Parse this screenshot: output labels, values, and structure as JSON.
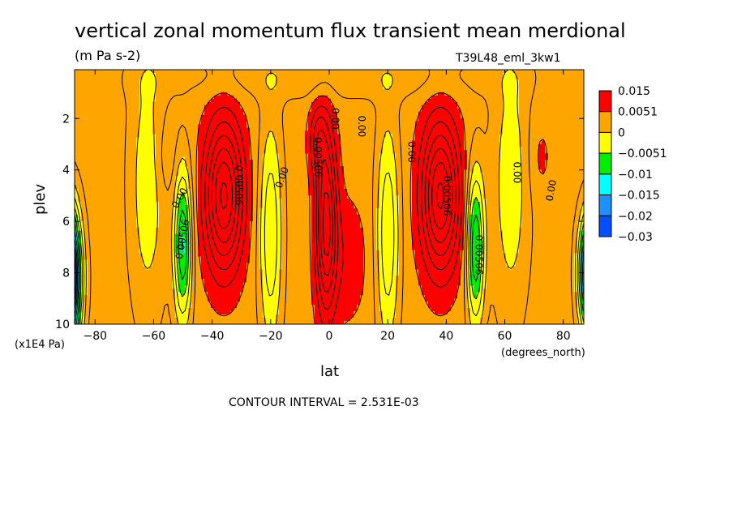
{
  "chart_data": {
    "type": "heatmap",
    "title": "vertical zonal momentum flux transient mean merdional",
    "units": "(m Pa s-2)",
    "run_label": "T39L48_eml_3kw1",
    "xlabel": "lat",
    "x_units": "(degrees_north)",
    "ylabel": "plev",
    "y_units": "(x1E4 Pa)",
    "x_range": [
      -87,
      87
    ],
    "y_range": [
      0.1,
      10
    ],
    "y_inverted": true,
    "x_ticks": [
      -80,
      -60,
      -40,
      -20,
      0,
      20,
      40,
      60,
      80
    ],
    "y_ticks": [
      2,
      4,
      6,
      8,
      10
    ],
    "footer": "CONTOUR INTERVAL = 2.531E-03",
    "colorbar": {
      "labels": [
        "0.015",
        "0.0051",
        "0",
        "−0.0051",
        "−0.01",
        "−0.015",
        "−0.02",
        "−0.03"
      ],
      "colors": [
        "#ff0000",
        "#ffa500",
        "#ffff00",
        "#00ee00",
        "#00ffff",
        "#1e90ff",
        "#0050ff"
      ]
    },
    "contour_labels": [
      {
        "text": "0.00",
        "lat": -51,
        "plev": 5.1,
        "rot": -60
      },
      {
        "text": "0.00506",
        "lat": -50,
        "plev": 6.7,
        "rot": -80
      },
      {
        "text": "0.00506",
        "lat": -31,
        "plev": 4.6,
        "rot": 90
      },
      {
        "text": "0.00",
        "lat": -16,
        "plev": 4.3,
        "rot": -70
      },
      {
        "text": "0.00506",
        "lat": -4,
        "plev": 3.5,
        "rot": 90
      },
      {
        "text": "0.00",
        "lat": 2,
        "plev": 2.0,
        "rot": 90
      },
      {
        "text": "0.00",
        "lat": 11,
        "plev": 2.3,
        "rot": 90
      },
      {
        "text": "0.00",
        "lat": 28,
        "plev": 3.3,
        "rot": 90
      },
      {
        "text": "0.00506",
        "lat": 40,
        "plev": 5.0,
        "rot": 90
      },
      {
        "text": "0.00506",
        "lat": 51,
        "plev": 7.3,
        "rot": 90
      },
      {
        "text": "0.00",
        "lat": 64,
        "plev": 4.1,
        "rot": 90
      },
      {
        "text": "0.00",
        "lat": 76,
        "plev": 4.8,
        "rot": -80
      }
    ]
  }
}
